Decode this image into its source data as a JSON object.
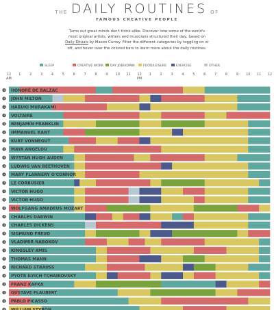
{
  "header": {
    "the": "THE",
    "title": "DAILY ROUTINES",
    "of": "OF",
    "subtitle": "FAMOUS CREATIVE PEOPLE",
    "intro_before": "Turns out great minds don't think alike. Discover how some of the world's most original artists, writers and musicians structured their day, based on ",
    "intro_link": "Daily Rituals",
    "intro_after": " by Mason Currey. Filter the different categories by toggling on or off, and hover over the colored bars to learn more about the daily routines."
  },
  "colors": {
    "sleep": "#5fa8a0",
    "creative": "#d46a6a",
    "day_job": "#7aa33e",
    "food": "#d9c862",
    "exercise": "#4b5a8a",
    "other": "#b8c8d2"
  },
  "chart_data": {
    "type": "bar",
    "x_ticks": [
      "12",
      "1",
      "2",
      "3",
      "4",
      "5",
      "6",
      "7",
      "8",
      "9",
      "10",
      "11",
      "12",
      "1",
      "2",
      "3",
      "4",
      "5",
      "6",
      "7",
      "8",
      "9",
      "10",
      "11",
      "12"
    ],
    "am_label": "AM",
    "pm_label": "PM",
    "xlim": [
      0,
      24
    ],
    "legend": [
      {
        "key": "sleep",
        "label": "SLEEP"
      },
      {
        "key": "creative",
        "label": "CREATIVE WORK"
      },
      {
        "key": "day_job",
        "label": "DAY JOB/ADMIN"
      },
      {
        "key": "food",
        "label": "FOOD/LEISURE"
      },
      {
        "key": "exercise",
        "label": "EXERCISE"
      },
      {
        "key": "other",
        "label": "OTHER"
      }
    ],
    "rows": [
      {
        "name": "HONORÉ DE BALZAC",
        "segments": [
          [
            0,
            1,
            "sleep"
          ],
          [
            1,
            8,
            "creative"
          ],
          [
            8,
            9.5,
            "sleep"
          ],
          [
            9.5,
            16,
            "creative"
          ],
          [
            16,
            17,
            "food"
          ],
          [
            17,
            18,
            "food"
          ],
          [
            18,
            24,
            "sleep"
          ]
        ]
      },
      {
        "name": "JOHN MILTON",
        "segments": [
          [
            0,
            4,
            "sleep"
          ],
          [
            4,
            5,
            "other"
          ],
          [
            5,
            7,
            "food"
          ],
          [
            7,
            12,
            "creative"
          ],
          [
            12,
            13,
            "food"
          ],
          [
            13,
            14,
            "exercise"
          ],
          [
            14,
            18,
            "creative"
          ],
          [
            18,
            20,
            "food"
          ],
          [
            20,
            21,
            "food"
          ],
          [
            21,
            24,
            "sleep"
          ]
        ]
      },
      {
        "name": "HARUKI MURAKAMI",
        "segments": [
          [
            0,
            4,
            "sleep"
          ],
          [
            4,
            9,
            "creative"
          ],
          [
            9,
            12,
            "food"
          ],
          [
            12,
            13,
            "exercise"
          ],
          [
            13,
            17,
            "food"
          ],
          [
            17,
            21,
            "food"
          ],
          [
            21,
            24,
            "sleep"
          ]
        ]
      },
      {
        "name": "VOLTAIRE",
        "segments": [
          [
            0,
            5,
            "sleep"
          ],
          [
            5,
            12,
            "creative"
          ],
          [
            12,
            14,
            "food"
          ],
          [
            14,
            18,
            "creative"
          ],
          [
            18,
            20,
            "food"
          ],
          [
            20,
            24,
            "creative"
          ]
        ]
      },
      {
        "name": "BENJAMIN FRANKLIN",
        "segments": [
          [
            0,
            5,
            "sleep"
          ],
          [
            5,
            8,
            "food"
          ],
          [
            8,
            12,
            "day_job"
          ],
          [
            12,
            14,
            "food"
          ],
          [
            14,
            18,
            "day_job"
          ],
          [
            18,
            22,
            "food"
          ],
          [
            22,
            24,
            "sleep"
          ]
        ]
      },
      {
        "name": "IMMANUEL KANT",
        "segments": [
          [
            0,
            5,
            "sleep"
          ],
          [
            5,
            7,
            "creative"
          ],
          [
            7,
            12,
            "day_job"
          ],
          [
            12,
            15,
            "food"
          ],
          [
            15,
            16,
            "exercise"
          ],
          [
            16,
            22,
            "food"
          ],
          [
            22,
            24,
            "sleep"
          ]
        ]
      },
      {
        "name": "KURT VONNEGUT",
        "segments": [
          [
            0,
            5.5,
            "sleep"
          ],
          [
            5.5,
            8,
            "creative"
          ],
          [
            8,
            10,
            "food"
          ],
          [
            10,
            12,
            "creative"
          ],
          [
            12,
            13,
            "exercise"
          ],
          [
            13,
            17,
            "food"
          ],
          [
            17,
            22,
            "food"
          ],
          [
            22,
            24,
            "sleep"
          ]
        ]
      },
      {
        "name": "MAYA ANGELOU",
        "segments": [
          [
            0,
            5,
            "sleep"
          ],
          [
            5,
            6,
            "food"
          ],
          [
            6,
            14,
            "creative"
          ],
          [
            14,
            19,
            "food"
          ],
          [
            19,
            22,
            "food"
          ],
          [
            22,
            24,
            "sleep"
          ]
        ]
      },
      {
        "name": "WYSTAN HUGH AUDEN",
        "segments": [
          [
            0,
            6,
            "sleep"
          ],
          [
            6,
            7,
            "food"
          ],
          [
            7,
            11.5,
            "creative"
          ],
          [
            11.5,
            13,
            "food"
          ],
          [
            13,
            18,
            "creative"
          ],
          [
            18,
            21,
            "food"
          ],
          [
            21,
            24,
            "sleep"
          ]
        ]
      },
      {
        "name": "LUDWIG VAN BEETHOVEN",
        "segments": [
          [
            0,
            6,
            "sleep"
          ],
          [
            6,
            7,
            "food"
          ],
          [
            7,
            14,
            "creative"
          ],
          [
            14,
            15,
            "exercise"
          ],
          [
            15,
            22,
            "food"
          ],
          [
            22,
            24,
            "sleep"
          ]
        ]
      },
      {
        "name": "MARY FLANNERY O'CONNOR",
        "segments": [
          [
            0,
            6,
            "sleep"
          ],
          [
            6,
            7,
            "food"
          ],
          [
            7,
            9,
            "creative"
          ],
          [
            9,
            12,
            "creative"
          ],
          [
            12,
            22,
            "food"
          ],
          [
            22,
            24,
            "sleep"
          ]
        ]
      },
      {
        "name": "LE CORBUSIER",
        "segments": [
          [
            0,
            6,
            "sleep"
          ],
          [
            6,
            6.5,
            "exercise"
          ],
          [
            6.5,
            8,
            "food"
          ],
          [
            8,
            13,
            "creative"
          ],
          [
            13,
            14,
            "food"
          ],
          [
            14,
            18,
            "day_job"
          ],
          [
            18,
            23,
            "food"
          ],
          [
            23,
            24,
            "sleep"
          ]
        ]
      },
      {
        "name": "VICTOR HUGO",
        "segments": [
          [
            0,
            6,
            "sleep"
          ],
          [
            6,
            7,
            "food"
          ],
          [
            7,
            11,
            "creative"
          ],
          [
            11,
            12,
            "other"
          ],
          [
            12,
            14,
            "exercise"
          ],
          [
            14,
            16,
            "food"
          ],
          [
            16,
            18,
            "creative"
          ],
          [
            18,
            22,
            "food"
          ],
          [
            22,
            24,
            "sleep"
          ]
        ]
      },
      {
        "name": "VICTOR HUGO",
        "segments": [
          [
            0,
            6,
            "sleep"
          ],
          [
            6,
            7,
            "food"
          ],
          [
            7,
            11,
            "creative"
          ],
          [
            11,
            12,
            "other"
          ],
          [
            12,
            14,
            "exercise"
          ],
          [
            14,
            17,
            "food"
          ],
          [
            17,
            18,
            "creative"
          ],
          [
            18,
            22,
            "food"
          ],
          [
            22,
            24,
            "sleep"
          ]
        ]
      },
      {
        "name": "WOLFGANG AMADEUS MOZART",
        "segments": [
          [
            0,
            1,
            "creative"
          ],
          [
            1,
            6,
            "sleep"
          ],
          [
            6,
            7,
            "food"
          ],
          [
            7,
            9,
            "creative"
          ],
          [
            9,
            13,
            "day_job"
          ],
          [
            13,
            17,
            "food"
          ],
          [
            17,
            21,
            "day_job"
          ],
          [
            21,
            23,
            "creative"
          ],
          [
            23,
            24,
            "food"
          ]
        ]
      },
      {
        "name": "CHARLES DARWIN",
        "segments": [
          [
            0,
            7,
            "sleep"
          ],
          [
            7,
            8,
            "exercise"
          ],
          [
            8,
            9.5,
            "creative"
          ],
          [
            9.5,
            10.5,
            "food"
          ],
          [
            10.5,
            12,
            "creative"
          ],
          [
            12,
            13,
            "exercise"
          ],
          [
            13,
            15,
            "food"
          ],
          [
            15,
            16,
            "sleep"
          ],
          [
            16,
            17,
            "creative"
          ],
          [
            17,
            22,
            "food"
          ],
          [
            22,
            24,
            "sleep"
          ]
        ]
      },
      {
        "name": "CHARLES DICKENS",
        "segments": [
          [
            0,
            7,
            "sleep"
          ],
          [
            7,
            8,
            "other"
          ],
          [
            8,
            14,
            "creative"
          ],
          [
            14,
            17,
            "exercise"
          ],
          [
            17,
            22,
            "food"
          ],
          [
            22,
            24,
            "sleep"
          ]
        ]
      },
      {
        "name": "SIGMUND FREUD",
        "segments": [
          [
            0,
            7,
            "sleep"
          ],
          [
            7,
            8,
            "food"
          ],
          [
            8,
            12,
            "day_job"
          ],
          [
            12,
            13,
            "food"
          ],
          [
            13,
            15,
            "exercise"
          ],
          [
            15,
            21,
            "day_job"
          ],
          [
            21,
            22,
            "food"
          ],
          [
            22,
            24,
            "creative"
          ]
        ]
      },
      {
        "name": "VLADIMIR NABOKOV",
        "segments": [
          [
            0,
            7,
            "sleep"
          ],
          [
            7,
            9,
            "creative"
          ],
          [
            9,
            11,
            "food"
          ],
          [
            11,
            12.5,
            "creative"
          ],
          [
            12.5,
            14,
            "food"
          ],
          [
            14,
            18,
            "creative"
          ],
          [
            18,
            23,
            "food"
          ],
          [
            23,
            24,
            "sleep"
          ]
        ]
      },
      {
        "name": "KINGSLEY AMIS",
        "segments": [
          [
            0,
            8,
            "sleep"
          ],
          [
            8,
            9,
            "food"
          ],
          [
            9,
            13,
            "creative"
          ],
          [
            13,
            17,
            "food"
          ],
          [
            17,
            20,
            "creative"
          ],
          [
            20,
            23,
            "food"
          ],
          [
            23,
            24,
            "sleep"
          ]
        ]
      },
      {
        "name": "THOMAS MANN",
        "segments": [
          [
            0,
            8,
            "sleep"
          ],
          [
            8,
            9,
            "food"
          ],
          [
            9,
            12,
            "creative"
          ],
          [
            12,
            14,
            "exercise"
          ],
          [
            14,
            16,
            "food"
          ],
          [
            16,
            18,
            "day_job"
          ],
          [
            18,
            23,
            "food"
          ],
          [
            23,
            24,
            "sleep"
          ]
        ]
      },
      {
        "name": "RICHARD STRAUSS",
        "segments": [
          [
            0,
            7,
            "sleep"
          ],
          [
            7,
            9,
            "food"
          ],
          [
            9,
            12.5,
            "creative"
          ],
          [
            12.5,
            16,
            "food"
          ],
          [
            16,
            17,
            "exercise"
          ],
          [
            17,
            19,
            "day_job"
          ],
          [
            19,
            22,
            "food"
          ],
          [
            22,
            24,
            "sleep"
          ]
        ]
      },
      {
        "name": "PYOTR ILYICH TCHAIKOVSKY",
        "segments": [
          [
            0,
            8,
            "sleep"
          ],
          [
            8,
            9,
            "food"
          ],
          [
            9,
            10,
            "exercise"
          ],
          [
            10,
            13,
            "creative"
          ],
          [
            13,
            14,
            "food"
          ],
          [
            14,
            16,
            "exercise"
          ],
          [
            16,
            17,
            "food"
          ],
          [
            17,
            19,
            "creative"
          ],
          [
            19,
            23,
            "food"
          ],
          [
            23,
            24,
            "sleep"
          ]
        ]
      },
      {
        "name": "FRANZ KAFKA",
        "segments": [
          [
            0,
            2,
            "creative"
          ],
          [
            2,
            6,
            "sleep"
          ],
          [
            6,
            8,
            "food"
          ],
          [
            8,
            14,
            "day_job"
          ],
          [
            14,
            19,
            "sleep"
          ],
          [
            19,
            20,
            "exercise"
          ],
          [
            20,
            23,
            "food"
          ],
          [
            23,
            24,
            "creative"
          ]
        ]
      },
      {
        "name": "GUSTAVE FLAUBERT",
        "segments": [
          [
            0,
            1,
            "creative"
          ],
          [
            1,
            10,
            "sleep"
          ],
          [
            10,
            11,
            "food"
          ],
          [
            11,
            13,
            "food"
          ],
          [
            13,
            19,
            "day_job"
          ],
          [
            19,
            21,
            "food"
          ],
          [
            21,
            24,
            "creative"
          ]
        ]
      },
      {
        "name": "PABLO PICASSO",
        "segments": [
          [
            0,
            2,
            "creative"
          ],
          [
            2,
            11,
            "sleep"
          ],
          [
            11,
            14,
            "food"
          ],
          [
            14,
            22,
            "creative"
          ],
          [
            22,
            24,
            "food"
          ]
        ]
      },
      {
        "name": "WILLIAM STYRON",
        "segments": [
          [
            0,
            3,
            "food"
          ],
          [
            3,
            12,
            "sleep"
          ],
          [
            12,
            16,
            "food"
          ],
          [
            16,
            20,
            "creative"
          ],
          [
            20,
            24,
            "food"
          ]
        ]
      }
    ]
  }
}
